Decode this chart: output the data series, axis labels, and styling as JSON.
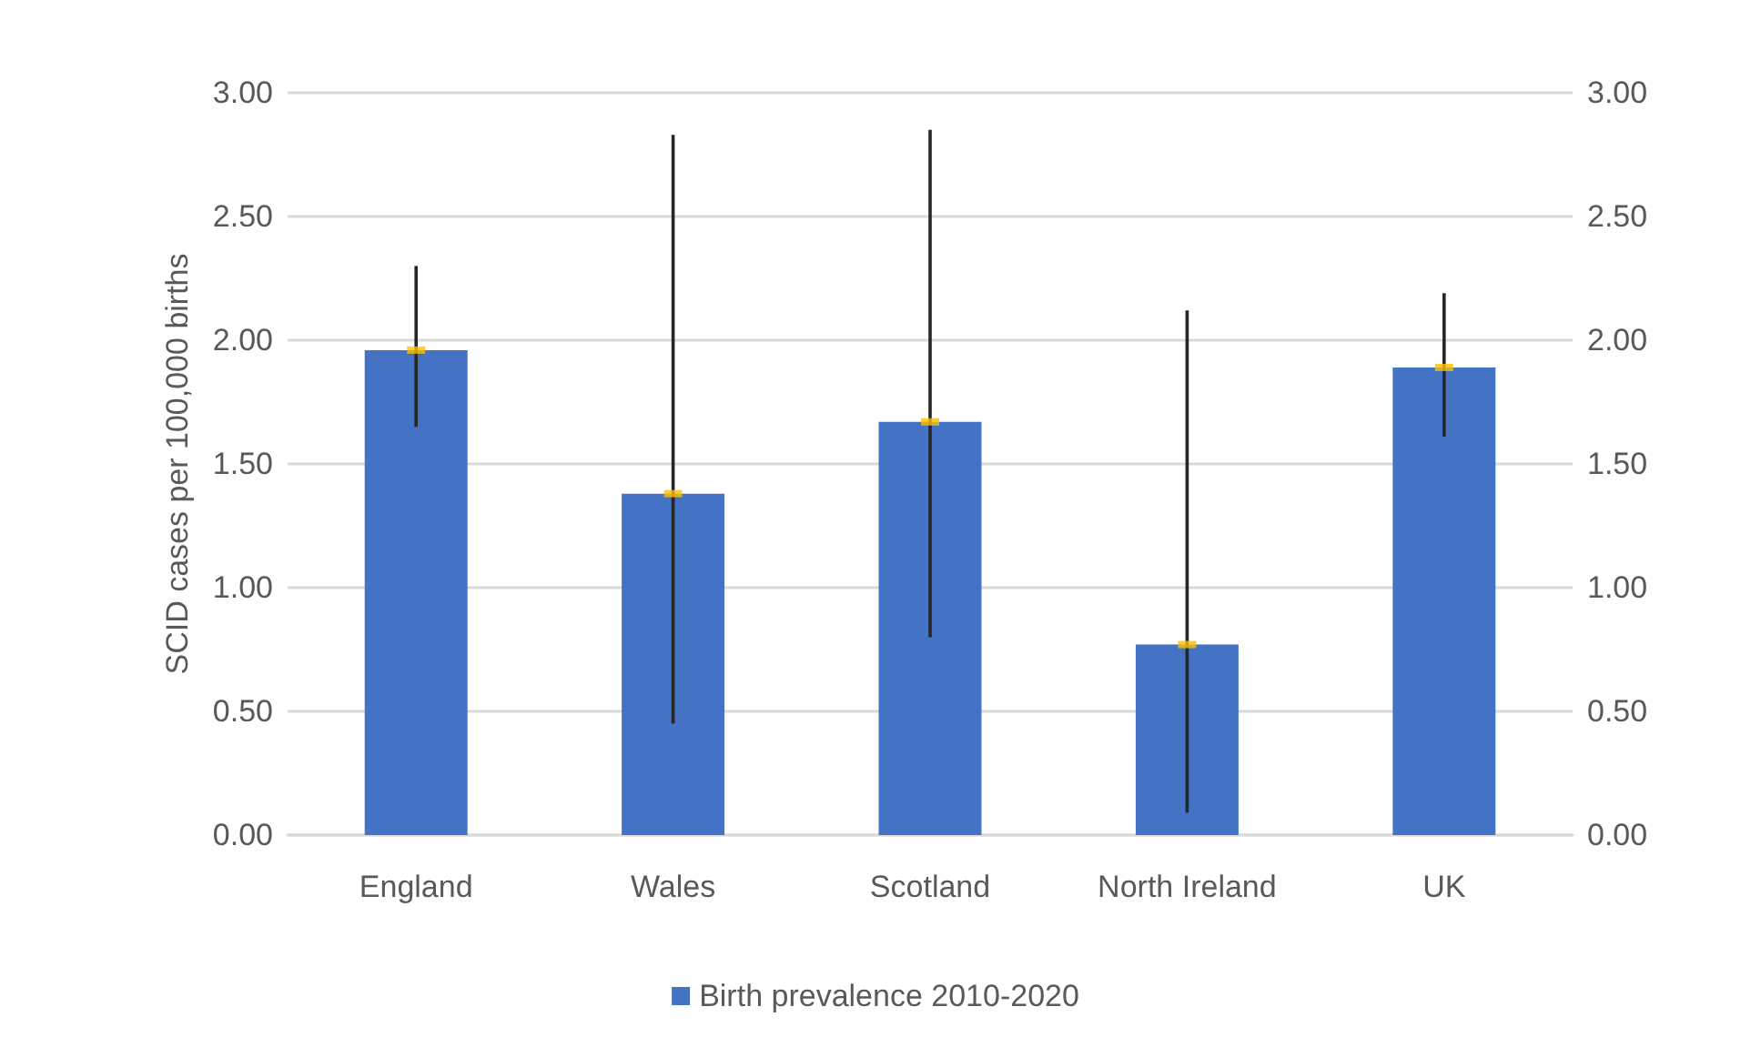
{
  "chart_data": {
    "type": "bar",
    "ylabel": "SCID cases per 100,000 births",
    "categories": [
      "England",
      "Wales",
      "Scotland",
      "North Ireland",
      "UK"
    ],
    "series": [
      {
        "name": "Birth prevalence 2010-2020",
        "color": "#4472c4",
        "values": [
          1.96,
          1.38,
          1.67,
          0.77,
          1.89
        ],
        "errors": [
          [
            1.65,
            2.3
          ],
          [
            0.45,
            2.83
          ],
          [
            0.8,
            2.85
          ],
          [
            0.09,
            2.12
          ],
          [
            1.61,
            2.19
          ]
        ]
      },
      {
        "type": "scatter",
        "color": "#ffc000",
        "marker": "square",
        "x": [
          "England",
          "Wales",
          "Scotland",
          "North Ireland",
          "UK"
        ],
        "values": [
          1.96,
          1.38,
          1.67,
          0.77,
          1.89
        ]
      }
    ],
    "ylim": [
      0,
      3
    ],
    "yticks": [
      {
        "value": 0,
        "label": "0.00"
      },
      {
        "value": 0.5,
        "label": "0.50"
      },
      {
        "value": 1,
        "label": "1.00"
      },
      {
        "value": 1.5,
        "label": "1.50"
      },
      {
        "value": 2,
        "label": "2.00"
      },
      {
        "value": 2.5,
        "label": "2.50"
      },
      {
        "value": 3,
        "label": "3.00"
      }
    ],
    "y2lim": [
      0,
      3
    ],
    "y2ticks": [
      {
        "value": 0,
        "label": "0.00"
      },
      {
        "value": 0.5,
        "label": "0.50"
      },
      {
        "value": 1,
        "label": "1.00"
      },
      {
        "value": 1.5,
        "label": "1.50"
      },
      {
        "value": 2,
        "label": "2.00"
      },
      {
        "value": 2.5,
        "label": "2.50"
      },
      {
        "value": 3,
        "label": "3.00"
      }
    ],
    "grid": "y",
    "legend": "bottom"
  }
}
